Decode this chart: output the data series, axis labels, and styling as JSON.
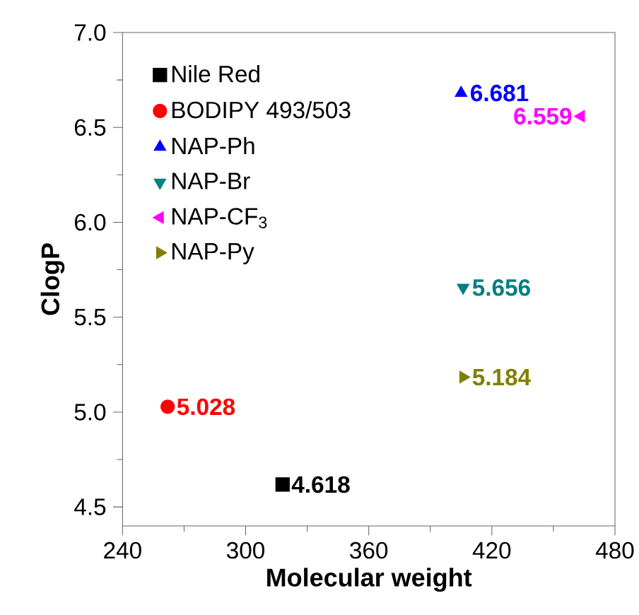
{
  "chart_data": {
    "type": "scatter",
    "xlabel": "Molecular weight",
    "ylabel": "ClogP",
    "xlim": [
      240,
      480
    ],
    "xticks": [
      240,
      300,
      360,
      420,
      480
    ],
    "ylim": [
      4.4,
      7.0
    ],
    "yticks": [
      {
        "value": 4.5,
        "label": "4.5"
      },
      {
        "value": 5,
        "label": "5.0"
      },
      {
        "value": 5.5,
        "label": "5.5"
      },
      {
        "value": 6,
        "label": "6.0"
      },
      {
        "value": 6.5,
        "label": "6.5"
      },
      {
        "value": 7,
        "label": "7.0"
      }
    ],
    "legend": "top left",
    "data_labels": true,
    "grid": false,
    "series": [
      {
        "name": "Nile Red",
        "color": "#000000",
        "marker": "square",
        "x": [
          318
        ],
        "values": [
          4.618
        ]
      },
      {
        "name": "BODIPY 493/503",
        "color": "#ff0000",
        "marker": "circle",
        "x": [
          262
        ],
        "values": [
          5.028
        ]
      },
      {
        "name": "NAP-Ph",
        "color": "#0000ff",
        "marker": "triangle",
        "x": [
          405
        ],
        "values": [
          6.681
        ]
      },
      {
        "name": "NAP-Br",
        "color": "#008080",
        "marker": "triangle-down",
        "x": [
          406
        ],
        "values": [
          5.656
        ]
      },
      {
        "name": "NAP-CF$_{3}$",
        "color": "#ff00ff",
        "marker": "triangle-left",
        "x": [
          463.5
        ],
        "values": [
          6.559
        ]
      },
      {
        "name": "NAP-Py",
        "color": "#808000",
        "marker": "triangle-right",
        "x": [
          406
        ],
        "values": [
          5.184
        ]
      }
    ]
  }
}
